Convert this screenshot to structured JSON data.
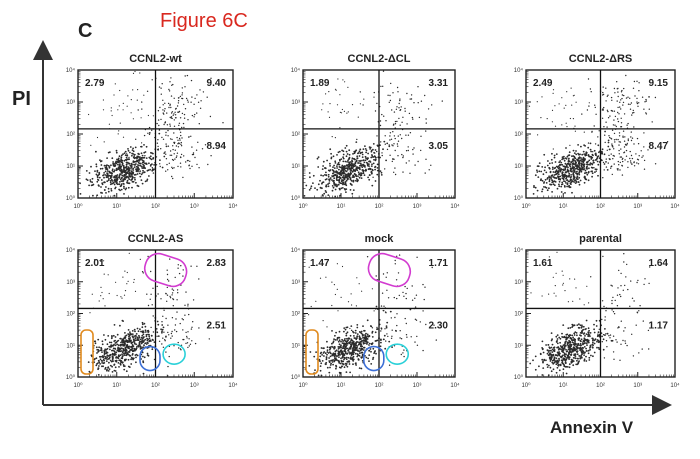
{
  "figure_title": "Figure 6C",
  "panel_letter": "C",
  "y_axis_label": "PI",
  "x_axis_label": "Annexin V",
  "colors": {
    "title": "#d9281f",
    "dots": "#2b2b2b",
    "orange_circle": "#e08a1e",
    "blue_circle": "#3c6fd6",
    "cyan_circle": "#2ad0d8",
    "magenta_circle": "#d23bd0"
  },
  "chart_data": [
    {
      "type": "scatter",
      "title": "CCNL2-wt",
      "quadrants": {
        "upper_left": "2.79",
        "upper_right": "9.40",
        "lower_right": "8.94"
      },
      "xlabel": "",
      "ylabel": "",
      "x_ticks": [
        "10⁰",
        "10¹",
        "10²",
        "10³",
        "10⁴"
      ],
      "y_ticks": [
        "10⁰",
        "10¹",
        "10²",
        "10³",
        "10⁴"
      ],
      "scale": "log",
      "xlim": [
        1,
        10000
      ],
      "ylim": [
        1,
        10000
      ],
      "gates": [],
      "sample": {
        "low": 1.0,
        "ll_spread": 0.35,
        "ur": 0.6,
        "lr": 0.5,
        "ul": 0.25
      }
    },
    {
      "type": "scatter",
      "title": "CCNL2-ΔCL",
      "quadrants": {
        "upper_left": "1.89",
        "upper_right": "3.31",
        "lower_right": "3.05"
      },
      "xlabel": "",
      "ylabel": "",
      "x_ticks": [
        "10⁰",
        "10¹",
        "10²",
        "10³",
        "10⁴"
      ],
      "y_ticks": [
        "10⁰",
        "10¹",
        "10²",
        "10³",
        "10⁴"
      ],
      "scale": "log",
      "xlim": [
        1,
        10000
      ],
      "ylim": [
        1,
        10000
      ],
      "gates": [],
      "sample": {
        "low": 1.0,
        "ll_spread": 0.35,
        "ur": 0.35,
        "lr": 0.3,
        "ul": 0.2
      }
    },
    {
      "type": "scatter",
      "title": "CCNL2-ΔRS",
      "quadrants": {
        "upper_left": "2.49",
        "upper_right": "9.15",
        "lower_right": "8.47"
      },
      "xlabel": "",
      "ylabel": "",
      "x_ticks": [
        "10⁰",
        "10¹",
        "10²",
        "10³",
        "10⁴"
      ],
      "y_ticks": [
        "10⁰",
        "10¹",
        "10²",
        "10³",
        "10⁴"
      ],
      "scale": "log",
      "xlim": [
        1,
        10000
      ],
      "ylim": [
        1,
        10000
      ],
      "gates": [],
      "sample": {
        "low": 1.0,
        "ll_spread": 0.35,
        "ur": 0.6,
        "lr": 0.55,
        "ul": 0.22
      }
    },
    {
      "type": "scatter",
      "title": "CCNL2-AS",
      "quadrants": {
        "upper_left": "2.01",
        "upper_right": "2.83",
        "lower_right": "2.51"
      },
      "xlabel": "",
      "ylabel": "",
      "x_ticks": [
        "10⁰",
        "10¹",
        "10²",
        "10³",
        "10⁴"
      ],
      "y_ticks": [
        "10⁰",
        "10¹",
        "10²",
        "10³",
        "10⁴"
      ],
      "scale": "log",
      "xlim": [
        1,
        10000
      ],
      "ylim": [
        1,
        10000
      ],
      "gates": [
        "orange",
        "blue",
        "cyan",
        "magenta"
      ],
      "sample": {
        "low": 1.0,
        "ll_spread": 0.35,
        "ur": 0.3,
        "lr": 0.3,
        "ul": 0.2
      }
    },
    {
      "type": "scatter",
      "title": "mock",
      "quadrants": {
        "upper_left": "1.47",
        "upper_right": "1.71",
        "lower_right": "2.30"
      },
      "xlabel": "",
      "ylabel": "",
      "x_ticks": [
        "10⁰",
        "10¹",
        "10²",
        "10³",
        "10⁴"
      ],
      "y_ticks": [
        "10⁰",
        "10¹",
        "10²",
        "10³",
        "10⁴"
      ],
      "scale": "log",
      "xlim": [
        1,
        10000
      ],
      "ylim": [
        1,
        10000
      ],
      "gates": [
        "orange",
        "blue",
        "cyan",
        "magenta"
      ],
      "sample": {
        "low": 1.0,
        "ll_spread": 0.35,
        "ur": 0.22,
        "lr": 0.25,
        "ul": 0.18
      }
    },
    {
      "type": "scatter",
      "title": "parental",
      "quadrants": {
        "upper_left": "1.61",
        "upper_right": "1.64",
        "lower_right": "1.17"
      },
      "xlabel": "",
      "ylabel": "",
      "x_ticks": [
        "10⁰",
        "10¹",
        "10²",
        "10³",
        "10⁴"
      ],
      "y_ticks": [
        "10⁰",
        "10¹",
        "10²",
        "10³",
        "10⁴"
      ],
      "scale": "log",
      "xlim": [
        1,
        10000
      ],
      "ylim": [
        1,
        10000
      ],
      "gates": [],
      "sample": {
        "low": 1.0,
        "ll_spread": 0.35,
        "ur": 0.2,
        "lr": 0.2,
        "ul": 0.15
      }
    }
  ]
}
